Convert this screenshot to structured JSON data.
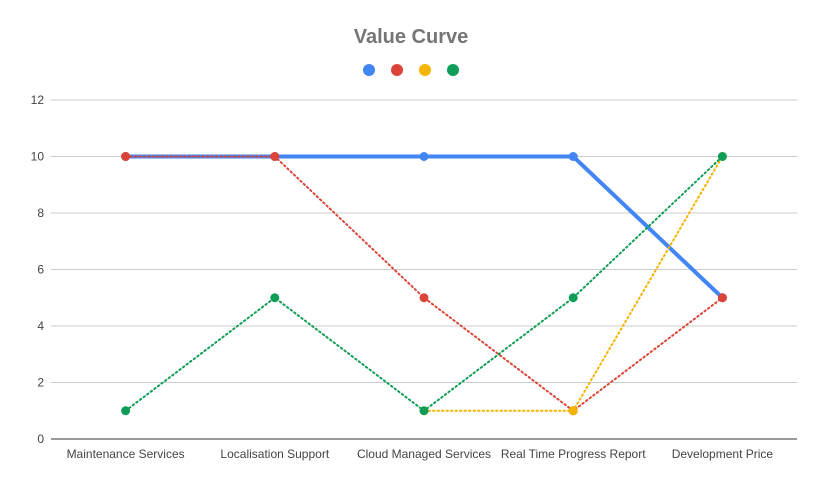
{
  "chart_data": {
    "type": "line",
    "title": "Value Curve",
    "xlabel": "",
    "ylabel": "",
    "categories": [
      "Maintenance Services",
      "Localisation Support",
      "Cloud Managed Services",
      "Real Time Progress Report",
      "Development Price"
    ],
    "ylim": [
      0,
      12
    ],
    "yticks": [
      0,
      2,
      4,
      6,
      8,
      10,
      12
    ],
    "grid": true,
    "legend_position": "top-center",
    "series": [
      {
        "values": [
          10,
          10,
          10,
          10,
          5
        ],
        "color": "#4285f4",
        "style": "solid"
      },
      {
        "values": [
          10,
          10,
          5,
          1,
          5
        ],
        "color": "#db4437",
        "style": "dotted"
      },
      {
        "values": [
          null,
          null,
          1,
          1,
          10
        ],
        "color": "#f4b400",
        "style": "dotted"
      },
      {
        "values": [
          1,
          5,
          1,
          5,
          10
        ],
        "color": "#0f9d58",
        "style": "dotted"
      }
    ]
  }
}
